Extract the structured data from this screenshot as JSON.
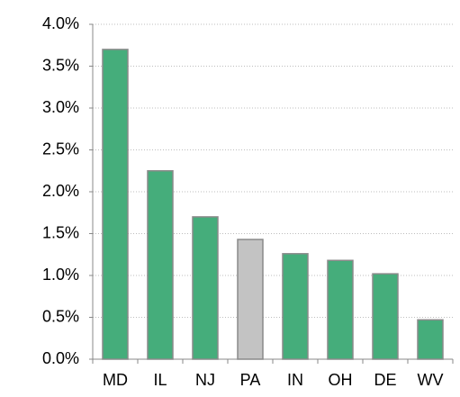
{
  "chart_data": {
    "type": "bar",
    "categories": [
      "MD",
      "IL",
      "NJ",
      "PA",
      "IN",
      "OH",
      "DE",
      "WV"
    ],
    "values": [
      3.7,
      2.25,
      1.7,
      1.43,
      1.26,
      1.18,
      1.02,
      0.47
    ],
    "colors": [
      "#45ad7b",
      "#45ad7b",
      "#45ad7b",
      "#c3c3c3",
      "#45ad7b",
      "#45ad7b",
      "#45ad7b",
      "#45ad7b"
    ],
    "ylim": [
      0,
      4
    ],
    "yticks": [
      {
        "value": 0,
        "label": "0.0%"
      },
      {
        "value": 0.5,
        "label": "0.5%"
      },
      {
        "value": 1,
        "label": "1.0%"
      },
      {
        "value": 1.5,
        "label": "1.5%"
      },
      {
        "value": 2,
        "label": "2.0%"
      },
      {
        "value": 2.5,
        "label": "2.5%"
      },
      {
        "value": 3,
        "label": "3.0%"
      },
      {
        "value": 3.5,
        "label": "3.5%"
      },
      {
        "value": 4,
        "label": "4.0%"
      }
    ],
    "grid": true
  }
}
